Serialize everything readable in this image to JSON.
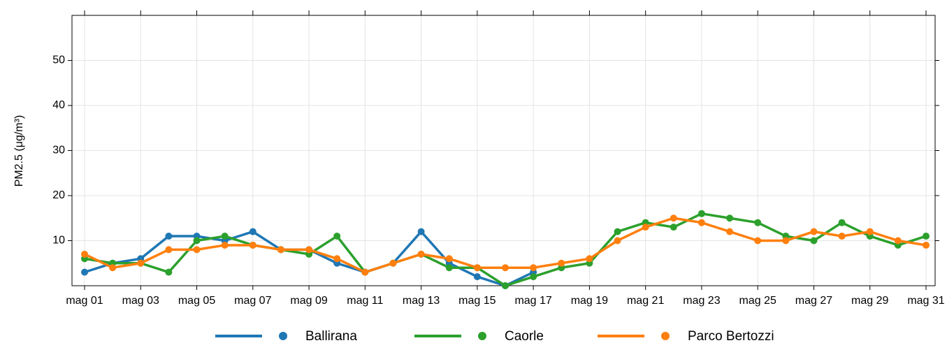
{
  "chart_data": {
    "type": "line",
    "y_label": "PM2.5 (μg/m³)",
    "categories": [
      "mag 01",
      null,
      "mag 03",
      null,
      "mag 05",
      null,
      "mag 07",
      null,
      "mag 09",
      null,
      "mag 11",
      null,
      "mag 13",
      null,
      "mag 15",
      null,
      "mag 17",
      null,
      "mag 19",
      null,
      "mag 21",
      null,
      "mag 23",
      null,
      "mag 25",
      null,
      "mag 27",
      null,
      "mag 29",
      null,
      "mag 31"
    ],
    "series": [
      {
        "name": "Ballirana",
        "color": "#1f77b4",
        "values": [
          3,
          5,
          6,
          11,
          11,
          10,
          12,
          8,
          8,
          5,
          3,
          5,
          12,
          5,
          2,
          0,
          3,
          null,
          null,
          null,
          null,
          null,
          null,
          null,
          null,
          null,
          null,
          null,
          null,
          null,
          null
        ]
      },
      {
        "name": "Caorle",
        "color": "#2ca02c",
        "values": [
          6,
          5,
          5,
          3,
          10,
          11,
          9,
          8,
          7,
          11,
          3,
          5,
          7,
          4,
          4,
          0,
          2,
          4,
          5,
          12,
          14,
          13,
          16,
          15,
          14,
          11,
          10,
          14,
          11,
          9,
          11
        ]
      },
      {
        "name": "Parco Bertozzi",
        "color": "#ff7f0e",
        "values": [
          7,
          4,
          5,
          8,
          8,
          9,
          9,
          8,
          8,
          6,
          3,
          5,
          7,
          6,
          4,
          4,
          4,
          5,
          6,
          10,
          13,
          15,
          14,
          12,
          10,
          10,
          12,
          11,
          12,
          10,
          9
        ]
      }
    ],
    "ylim": [
      0,
      60
    ],
    "yticks": [
      10,
      20,
      30,
      40,
      50
    ],
    "grid": true
  }
}
